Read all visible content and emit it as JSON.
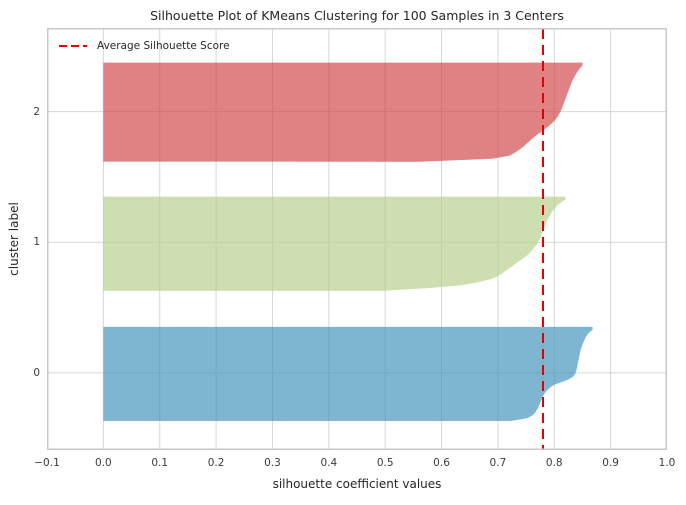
{
  "chart_data": {
    "type": "area",
    "variant": "silhouette-plot",
    "title": "Silhouette Plot of KMeans Clustering for 100 Samples in 3 Centers",
    "xlabel": "silhouette coefficient values",
    "ylabel": "cluster label",
    "n_samples": 100,
    "n_clusters": 3,
    "xlim": [
      -0.1,
      1.0
    ],
    "ylim": [
      -0.59,
      2.64
    ],
    "grid": true,
    "xticks": {
      "values": [
        -0.1,
        0.0,
        0.1,
        0.2,
        0.3,
        0.4,
        0.5,
        0.6,
        0.7,
        0.8,
        0.9,
        1.0
      ],
      "labels": [
        "−0.1",
        "0.0",
        "0.1",
        "0.2",
        "0.3",
        "0.4",
        "0.5",
        "0.6",
        "0.7",
        "0.8",
        "0.9",
        "1.0"
      ]
    },
    "yticks": {
      "values": [
        0,
        1,
        2
      ],
      "labels": [
        "0",
        "1",
        "2"
      ]
    },
    "average_score": 0.78,
    "legend": {
      "position": "upper-left",
      "label": "Average Silhouette Score"
    },
    "colors": {
      "avg_line": "#e50000",
      "grid": "#d7d7d7",
      "spine": "#c9c9c9",
      "cluster_2": "rgba(207,61,64,0.65)",
      "cluster_1": "rgba(178,206,135,0.65)",
      "cluster_0": "rgba(57,143,184,0.65)"
    },
    "clusters": [
      {
        "label": "2",
        "n": 33,
        "color_key": "cluster_2",
        "y_range": [
          1.617,
          2.375
        ],
        "values_sorted_desc": [
          0.85,
          0.845,
          0.841,
          0.838,
          0.835,
          0.832,
          0.83,
          0.828,
          0.826,
          0.824,
          0.822,
          0.82,
          0.818,
          0.816,
          0.814,
          0.812,
          0.809,
          0.806,
          0.802,
          0.797,
          0.791,
          0.784,
          0.777,
          0.77,
          0.763,
          0.757,
          0.751,
          0.745,
          0.738,
          0.73,
          0.72,
          0.69,
          0.56
        ]
      },
      {
        "label": "1",
        "n": 33,
        "color_key": "cluster_1",
        "y_range": [
          0.628,
          1.349
        ],
        "values_sorted_desc": [
          0.82,
          0.812,
          0.806,
          0.801,
          0.797,
          0.794,
          0.791,
          0.788,
          0.786,
          0.784,
          0.782,
          0.78,
          0.778,
          0.776,
          0.774,
          0.771,
          0.768,
          0.764,
          0.76,
          0.755,
          0.749,
          0.742,
          0.735,
          0.728,
          0.721,
          0.714,
          0.707,
          0.698,
          0.685,
          0.665,
          0.635,
          0.58,
          0.49
        ]
      },
      {
        "label": "0",
        "n": 34,
        "color_key": "cluster_0",
        "y_range": [
          -0.368,
          0.352
        ],
        "values_sorted_desc": [
          0.868,
          0.862,
          0.858,
          0.855,
          0.853,
          0.851,
          0.849,
          0.847,
          0.846,
          0.845,
          0.844,
          0.843,
          0.842,
          0.841,
          0.84,
          0.839,
          0.837,
          0.833,
          0.825,
          0.812,
          0.799,
          0.792,
          0.787,
          0.783,
          0.78,
          0.778,
          0.776,
          0.774,
          0.772,
          0.769,
          0.766,
          0.761,
          0.752,
          0.722
        ]
      }
    ]
  }
}
